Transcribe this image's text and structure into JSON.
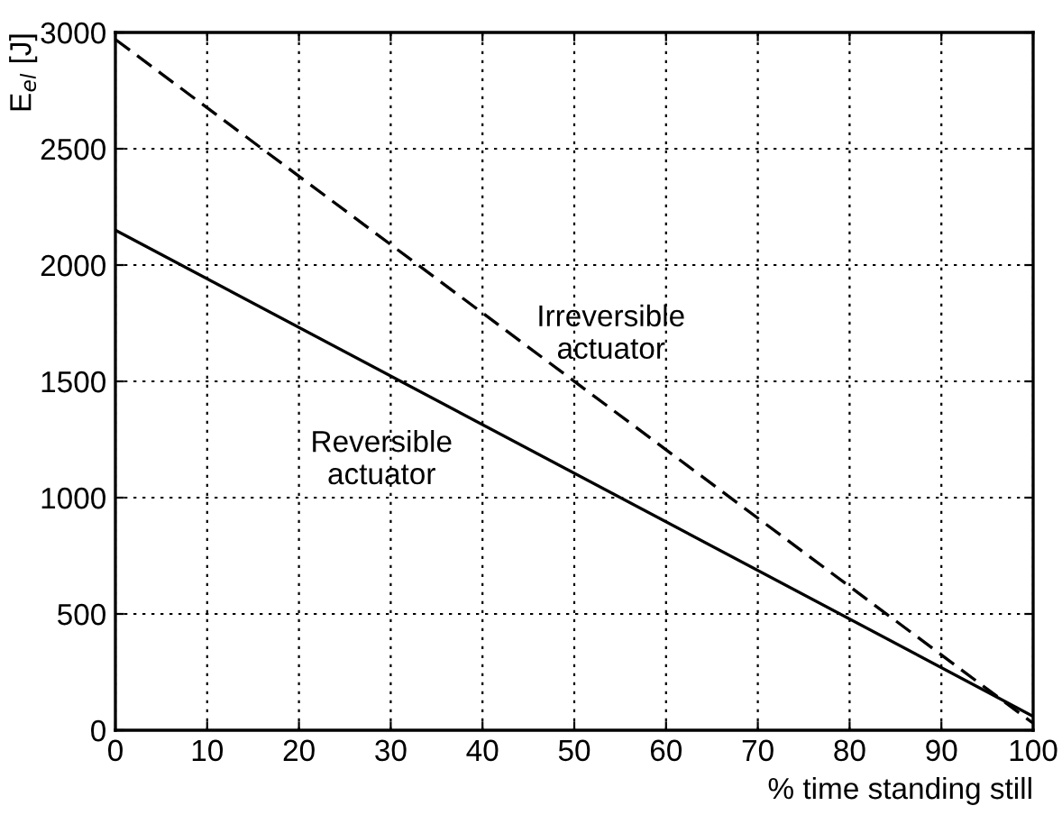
{
  "chart_data": {
    "type": "line",
    "xlabel": "% time standing still",
    "ylabel": "E$_{el}$ [J]",
    "x": [
      0,
      100
    ],
    "series": [
      {
        "color": "#000000",
        "values": [
          2150,
          60
        ],
        "line_style": "solid"
      },
      {
        "color": "#000000",
        "values": [
          2970,
          30
        ],
        "line_style": "dashed"
      }
    ],
    "annotations": [
      "Reversible\nactuator",
      "Irreversible\nactuator"
    ],
    "xlim": [
      0,
      100
    ],
    "ylim": [
      0,
      3000
    ],
    "xticks": [
      0,
      10,
      20,
      30,
      40,
      50,
      60,
      70,
      80,
      90,
      100
    ],
    "yticks": [
      0,
      500,
      1000,
      1500,
      2000,
      2500,
      3000
    ],
    "grid": true,
    "marker": "none"
  }
}
